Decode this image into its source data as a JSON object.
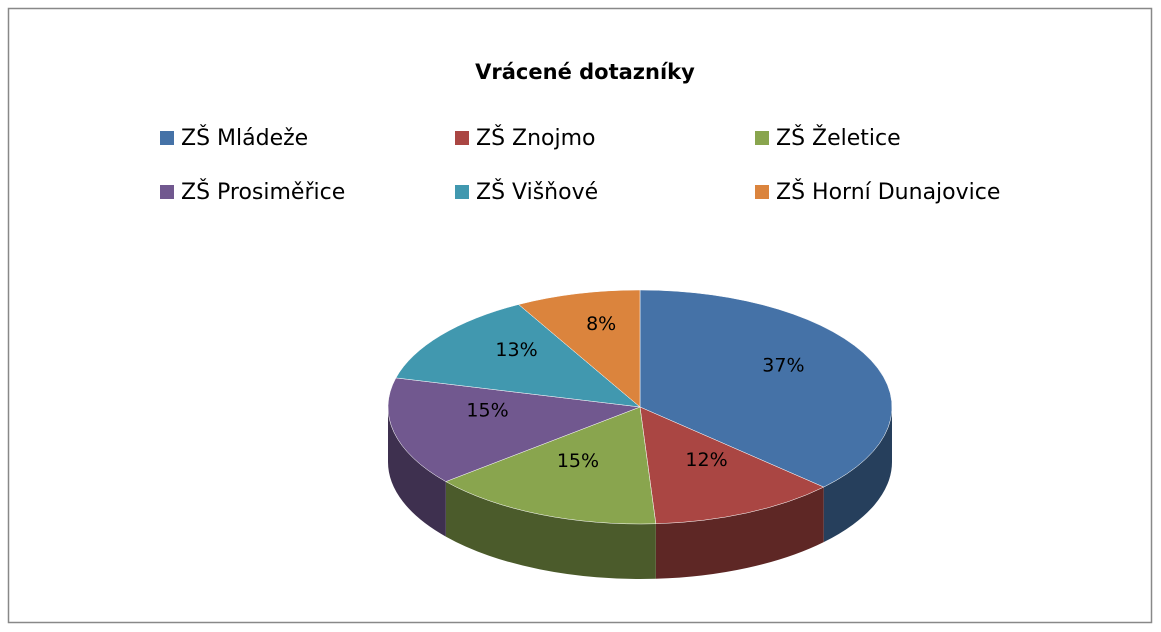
{
  "chart_data": {
    "type": "pie",
    "title": "Vrácené dotazníky",
    "categories": [
      "ZŠ Mládeže",
      "ZŠ Znojmo",
      "ZŠ Želetice",
      "ZŠ Prosiměřice",
      "ZŠ Višňové",
      "ZŠ Horní Dunajovice"
    ],
    "values": [
      37,
      12,
      15,
      15,
      13,
      8
    ],
    "value_labels": [
      "37%",
      "12%",
      "15%",
      "15%",
      "13%",
      "8%"
    ],
    "colors": [
      "#4572a7",
      "#aa4643",
      "#89a54e",
      "#71588f",
      "#4198af",
      "#db843d"
    ]
  }
}
